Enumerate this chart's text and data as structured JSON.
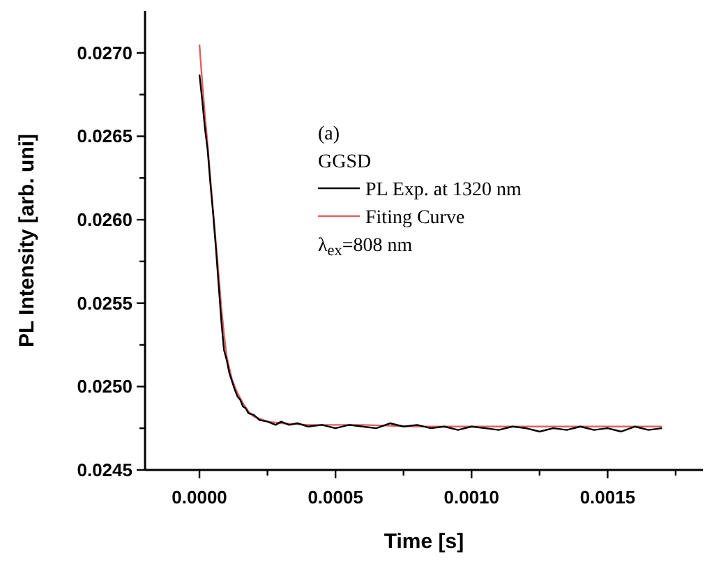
{
  "chart_data": {
    "type": "line",
    "xlabel": "Time [s]",
    "ylabel": "PL Intensity [arb. uni]",
    "annotations": [
      "(a)",
      "GGSD",
      "λ$_{ex}$=808 nm"
    ],
    "xlim": [
      -0.0002,
      0.00185
    ],
    "ylim": [
      0.0245,
      0.02725
    ],
    "xticks": [
      {
        "value": 0,
        "label": "0.0000"
      },
      {
        "value": 0.00025,
        "label": null
      },
      {
        "value": 0.0005,
        "label": "0.0005"
      },
      {
        "value": 0.00075,
        "label": null
      },
      {
        "value": 0.001,
        "label": "0.0010"
      },
      {
        "value": 0.00125,
        "label": null
      },
      {
        "value": 0.0015,
        "label": "0.0015"
      },
      {
        "value": 0.00175,
        "label": null
      }
    ],
    "yticks": [
      {
        "value": 0.0245,
        "label": "0.0245"
      },
      {
        "value": 0.02475,
        "label": null
      },
      {
        "value": 0.025,
        "label": "0.0250"
      },
      {
        "value": 0.02525,
        "label": null
      },
      {
        "value": 0.0255,
        "label": "0.0255"
      },
      {
        "value": 0.02575,
        "label": null
      },
      {
        "value": 0.026,
        "label": "0.0260"
      },
      {
        "value": 0.02625,
        "label": null
      },
      {
        "value": 0.0265,
        "label": "0.0265"
      },
      {
        "value": 0.02675,
        "label": null
      },
      {
        "value": 0.027,
        "label": "0.0270"
      }
    ],
    "grid": false,
    "legend": "top right",
    "line_style": "solid",
    "marker": "none",
    "series": [
      {
        "name": "Fiting Curve",
        "color": "#e06060",
        "x": [
          0,
          1e-05,
          2e-05,
          3e-05,
          4e-05,
          5e-05,
          6e-05,
          7e-05,
          8e-05,
          9e-05,
          0.0001,
          0.00012,
          0.00014,
          0.00016,
          0.00018,
          0.0002,
          0.00025,
          0.0003,
          0.0004,
          0.0006,
          0.0008,
          0.001,
          0.0012,
          0.0014,
          0.0017
        ],
        "values": [
          0.02705,
          0.02683,
          0.02663,
          0.02645,
          0.02625,
          0.02606,
          0.02587,
          0.02568,
          0.02548,
          0.02532,
          0.02518,
          0.02504,
          0.02496,
          0.0249,
          0.02485,
          0.02482,
          0.02479,
          0.02478,
          0.02477,
          0.02477,
          0.02476,
          0.02476,
          0.02476,
          0.02476,
          0.02476
        ]
      },
      {
        "name": "PL Exp. at 1320 nm",
        "color": "#000000",
        "x": [
          0,
          1e-05,
          2e-05,
          3e-05,
          4e-05,
          5e-05,
          6e-05,
          7e-05,
          8e-05,
          9e-05,
          0.0001,
          0.00011,
          0.00012,
          0.00013,
          0.00014,
          0.00015,
          0.00016,
          0.00017,
          0.00018,
          0.0002,
          0.00022,
          0.00025,
          0.00028,
          0.0003,
          0.00033,
          0.00036,
          0.0004,
          0.00045,
          0.0005,
          0.00055,
          0.0006,
          0.00065,
          0.0007,
          0.00075,
          0.0008,
          0.00085,
          0.0009,
          0.00095,
          0.001,
          0.00105,
          0.0011,
          0.00115,
          0.0012,
          0.00125,
          0.0013,
          0.00135,
          0.0014,
          0.00145,
          0.0015,
          0.00155,
          0.0016,
          0.00165,
          0.0017
        ],
        "values": [
          0.02687,
          0.02672,
          0.02655,
          0.02642,
          0.02622,
          0.02604,
          0.02584,
          0.02562,
          0.0254,
          0.02522,
          0.02516,
          0.02508,
          0.02503,
          0.02498,
          0.02494,
          0.02492,
          0.02488,
          0.02487,
          0.02484,
          0.02483,
          0.0248,
          0.02479,
          0.02477,
          0.02479,
          0.02477,
          0.02478,
          0.02476,
          0.02477,
          0.02475,
          0.02477,
          0.02476,
          0.02475,
          0.02478,
          0.02476,
          0.02477,
          0.02475,
          0.02476,
          0.02474,
          0.02476,
          0.02475,
          0.02474,
          0.02476,
          0.02475,
          0.02473,
          0.02475,
          0.02474,
          0.02476,
          0.02474,
          0.02475,
          0.02473,
          0.02476,
          0.02474,
          0.02475
        ]
      }
    ]
  }
}
